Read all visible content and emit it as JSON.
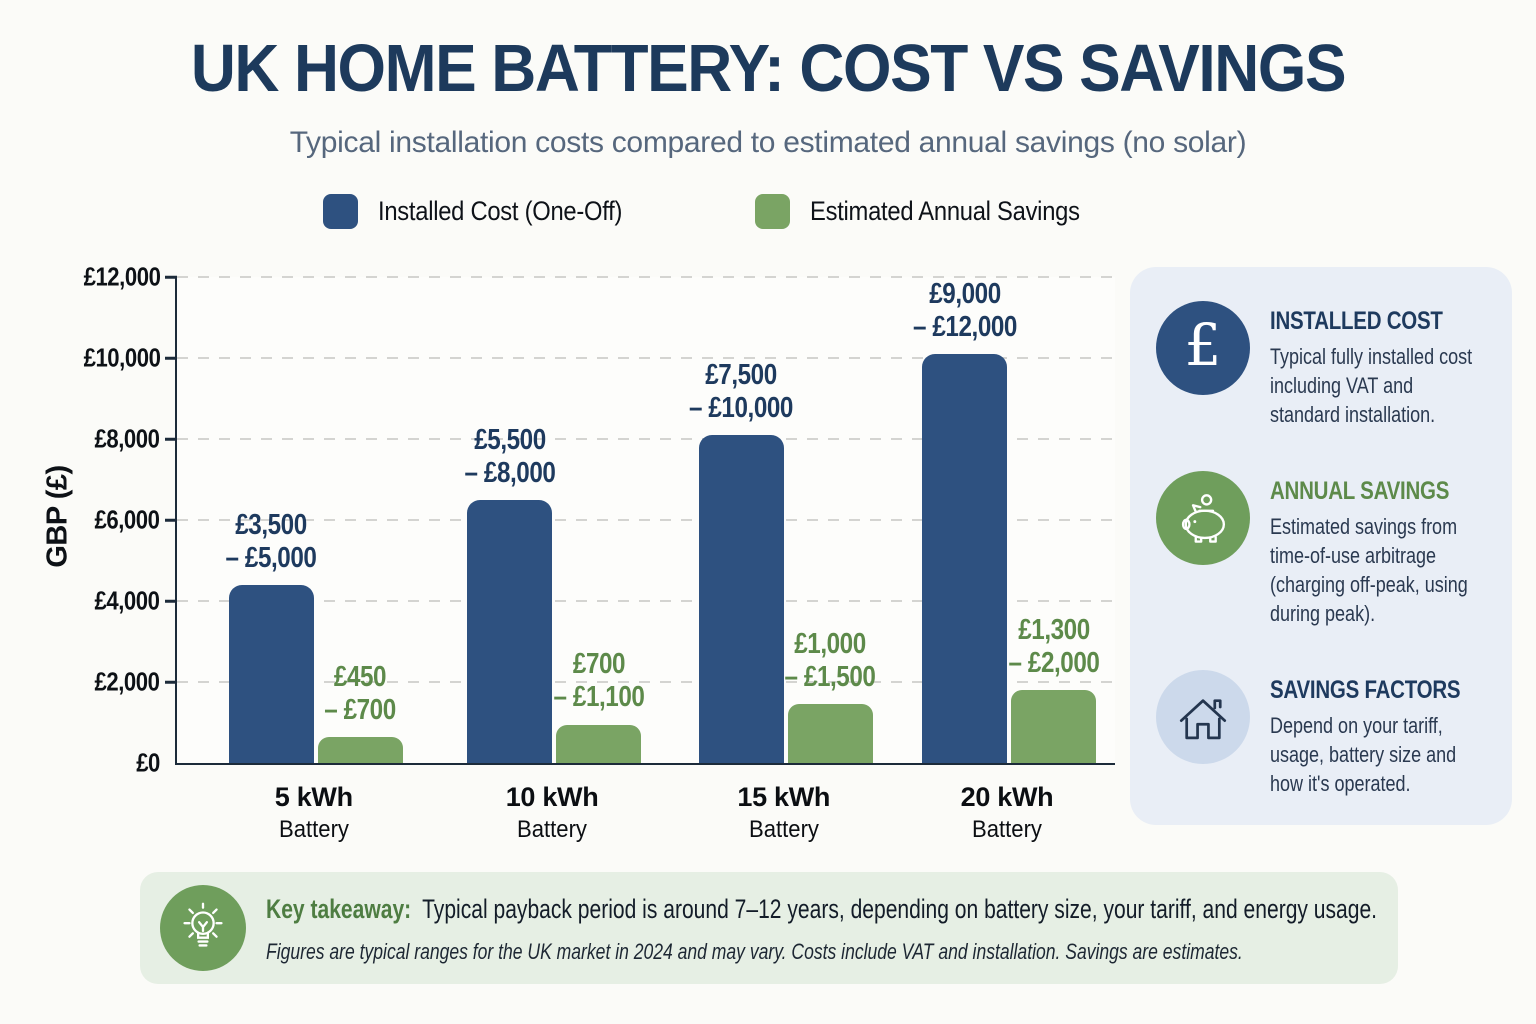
{
  "header": {
    "title": "UK HOME BATTERY: COST VS SAVINGS",
    "subtitle": "Typical installation costs compared to estimated annual savings (no solar)"
  },
  "colors": {
    "navy_text": "#1e3a5e",
    "bar_blue": "#2e5180",
    "bar_green": "#7aa464",
    "green_text": "#5d8a4a",
    "panel_bg": "#e9eef6",
    "footer_bg": "#e6efe4",
    "green_circle": "#6f9e5c",
    "pale_blue_circle": "#ccd9eb"
  },
  "chart_data": {
    "type": "bar",
    "title": "UK Home Battery: Cost vs Savings",
    "xlabel": "",
    "ylabel": "GBP (£)",
    "ylim": [
      0,
      12000
    ],
    "ytick_step": 2000,
    "ytick_labels": [
      "£0",
      "£2,000",
      "£4,000",
      "£6,000",
      "£8,000",
      "£10,000",
      "£12,000"
    ],
    "grid": "horizontal dashed",
    "legend_position": "top",
    "categories": [
      "5 kWh",
      "10 kWh",
      "15 kWh",
      "20 kWh"
    ],
    "category_sub": "Battery",
    "series": [
      {
        "name": "Installed Cost (One-Off)",
        "color": "#2e5180",
        "label_color": "#1e3a5e",
        "bar_values": [
          4400,
          6500,
          8100,
          10100
        ],
        "value_ranges": [
          [
            3500,
            5000
          ],
          [
            5500,
            8000
          ],
          [
            7500,
            10000
          ],
          [
            9000,
            12000
          ]
        ],
        "range_labels": [
          [
            "£3,500",
            "– £5,000"
          ],
          [
            "£5,500",
            "– £8,000"
          ],
          [
            "£7,500",
            "– £10,000"
          ],
          [
            "£9,000",
            "– £12,000"
          ]
        ]
      },
      {
        "name": "Estimated Annual Savings",
        "color": "#7aa464",
        "label_color": "#5d8a4a",
        "bar_values": [
          640,
          950,
          1450,
          1800
        ],
        "value_ranges": [
          [
            450,
            700
          ],
          [
            700,
            1100
          ],
          [
            1000,
            1500
          ],
          [
            1300,
            2000
          ]
        ],
        "range_labels": [
          [
            "£450",
            "– £700"
          ],
          [
            "£700",
            "– £1,100"
          ],
          [
            "£1,000",
            "– £1,500"
          ],
          [
            "£1,300",
            "– £2,000"
          ]
        ]
      }
    ]
  },
  "sidebar": {
    "cards": [
      {
        "icon": "pound-sign-icon",
        "title": "INSTALLED COST",
        "title_color": "#1e3a5e",
        "body": "Typical fully installed cost including VAT and standard installation."
      },
      {
        "icon": "piggy-bank-icon",
        "title": "ANNUAL SAVINGS",
        "title_color": "#5d8a4a",
        "body": "Estimated savings from time-of-use arbitrage (charging off-peak, using during peak)."
      },
      {
        "icon": "house-icon",
        "title": "SAVINGS FACTORS",
        "title_color": "#1e3a5e",
        "body": "Depend on your tariff, usage, battery size and how it's operated."
      }
    ]
  },
  "footer": {
    "icon": "lightbulb-icon",
    "takeaway_label": "Key takeaway:",
    "takeaway_text": "Typical payback period is around 7–12 years, depending on battery size, your tariff, and energy usage.",
    "note": "Figures are typical ranges for the UK market in 2024 and may vary. Costs include VAT and installation. Savings are estimates."
  }
}
